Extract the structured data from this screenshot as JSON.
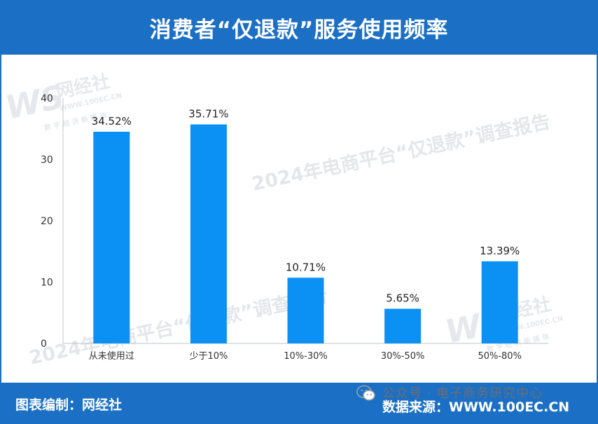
{
  "header": {
    "title": "消费者“仅退款”服务使用频率"
  },
  "footer": {
    "credit": "图表编制：网经社",
    "source": "数据来源：WWW.100EC.CN",
    "wechat_text": "公众号 · 电子商务研究中心"
  },
  "watermarks": {
    "logo": "WS",
    "logo_name": "网经社",
    "logo_url": "WWW.100EC.CN",
    "logo_tagline": "数 字 经 济 新 媒 体",
    "survey": "2024年电商平台“仅退款”调查报告"
  },
  "colors": {
    "header": "#1b6fc4",
    "bar": "#0b90f3",
    "axis": "#bfc4c9"
  },
  "chart_data": {
    "type": "bar",
    "title": "消费者“仅退款”服务使用频率",
    "categories": [
      "从未使用过",
      "少于10%",
      "10%-30%",
      "30%-50%",
      "50%-80%"
    ],
    "values": [
      34.52,
      35.71,
      10.71,
      5.65,
      13.39
    ],
    "data_labels": [
      "34.52%",
      "35.71%",
      "10.71%",
      "5.65%",
      "13.39%"
    ],
    "ylim": [
      0,
      40
    ],
    "yticks": [
      0,
      10,
      20,
      30,
      40
    ],
    "xlabel": "",
    "ylabel": "",
    "grid": false,
    "legend": "none"
  }
}
